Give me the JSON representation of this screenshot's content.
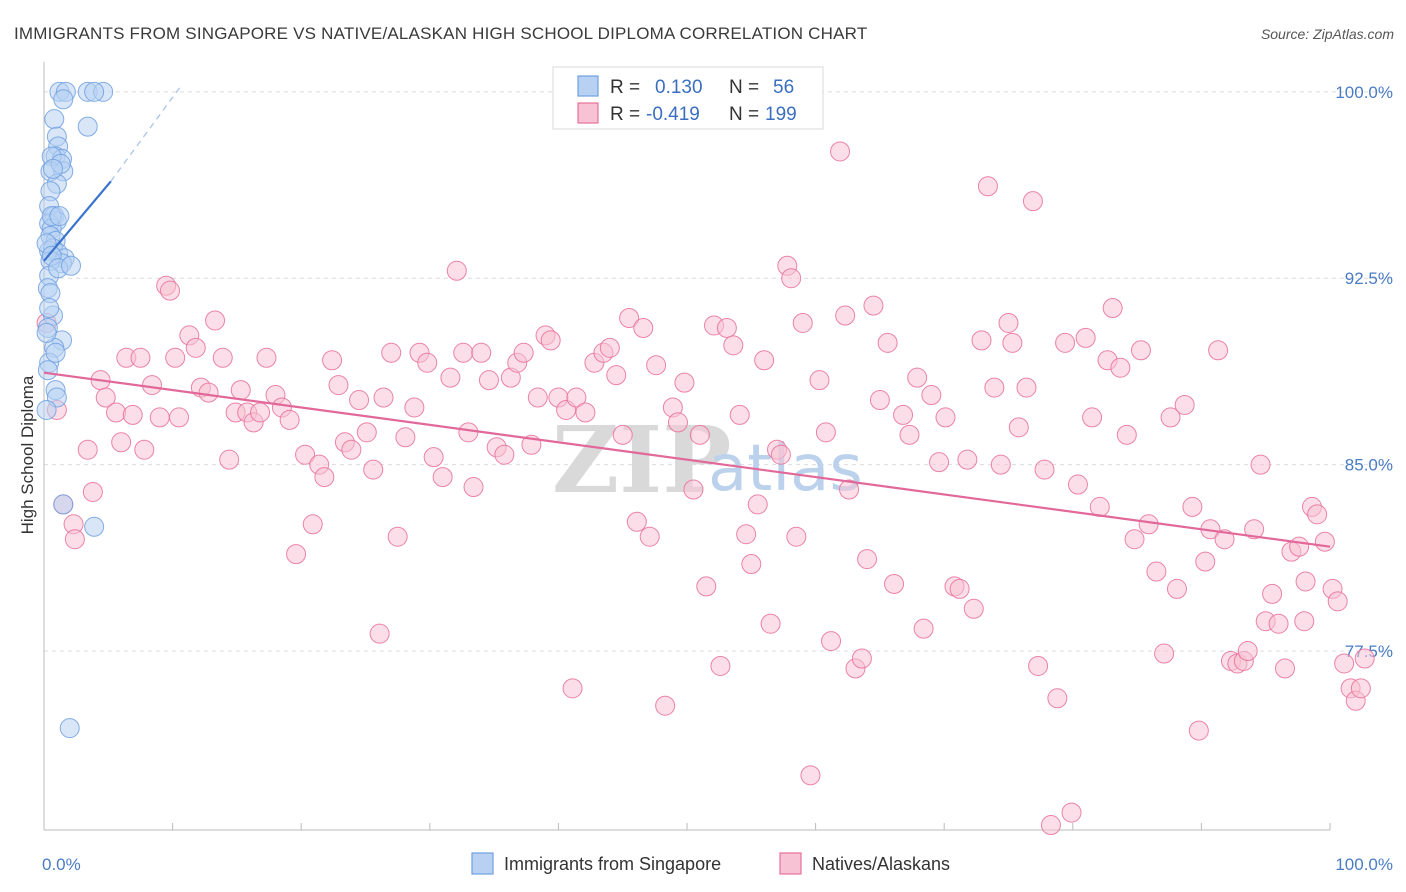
{
  "chart_data": {
    "type": "scatter",
    "title": "IMMIGRANTS FROM SINGAPORE VS NATIVE/ALASKAN HIGH SCHOOL DIPLOMA CORRELATION CHART",
    "source": "Source: ZipAtlas.com",
    "ylabel": "High School Diploma",
    "xlabel": "",
    "xlim": [
      0,
      100
    ],
    "ylim": [
      70.3,
      101.2
    ],
    "x_tick_labels": [
      "0.0%",
      "100.0%"
    ],
    "y_ticks": [
      {
        "value": 100.0,
        "label": "100.0%"
      },
      {
        "value": 92.5,
        "label": "92.5%"
      },
      {
        "value": 85.0,
        "label": "85.0%"
      },
      {
        "value": 77.5,
        "label": "77.5%"
      }
    ],
    "grid": "horizontal dashed",
    "legend_position": "top-center",
    "watermark": {
      "zip": "ZIP",
      "atlas": "atlas"
    },
    "stats": [
      {
        "r_label": "R =",
        "r": "0.130",
        "n_label": "N =",
        "n": "56"
      },
      {
        "r_label": "R =",
        "r": "-0.419",
        "n_label": "N =",
        "n": "199"
      }
    ],
    "series": [
      {
        "name": "Immigrants from Singapore",
        "color": "#6fa0e0",
        "fill": "#b8d1f3",
        "trend": {
          "x0": 0.0,
          "y0": 93.2,
          "x1": 5.2,
          "y1": 96.4,
          "dash_to_x": 10.6,
          "dash_to_y": 100.2
        },
        "points": [
          [
            1.2,
            100.0
          ],
          [
            1.7,
            100.0
          ],
          [
            3.4,
            100.0
          ],
          [
            4.6,
            100.0
          ],
          [
            1.5,
            99.7
          ],
          [
            3.9,
            100.0
          ],
          [
            0.8,
            98.9
          ],
          [
            3.4,
            98.6
          ],
          [
            1.0,
            98.2
          ],
          [
            1.1,
            97.8
          ],
          [
            0.9,
            97.4
          ],
          [
            1.4,
            97.3
          ],
          [
            0.6,
            97.4
          ],
          [
            0.5,
            96.8
          ],
          [
            1.5,
            96.8
          ],
          [
            1.0,
            96.3
          ],
          [
            0.5,
            96.0
          ],
          [
            0.4,
            95.4
          ],
          [
            0.8,
            95.0
          ],
          [
            1.0,
            94.8
          ],
          [
            0.4,
            94.7
          ],
          [
            0.6,
            94.5
          ],
          [
            0.5,
            94.2
          ],
          [
            0.9,
            94.0
          ],
          [
            0.4,
            93.6
          ],
          [
            0.7,
            93.7
          ],
          [
            1.1,
            93.5
          ],
          [
            1.6,
            93.3
          ],
          [
            1.4,
            93.1
          ],
          [
            0.5,
            93.2
          ],
          [
            0.4,
            92.6
          ],
          [
            0.3,
            92.1
          ],
          [
            0.5,
            91.9
          ],
          [
            0.7,
            91.0
          ],
          [
            0.3,
            90.5
          ],
          [
            1.4,
            90.0
          ],
          [
            0.8,
            89.7
          ],
          [
            0.4,
            89.1
          ],
          [
            0.9,
            88.0
          ],
          [
            1.0,
            87.7
          ],
          [
            0.2,
            87.2
          ],
          [
            1.5,
            83.4
          ],
          [
            3.9,
            82.5
          ],
          [
            2.0,
            74.4
          ],
          [
            0.6,
            95.0
          ],
          [
            0.2,
            93.9
          ],
          [
            1.2,
            95.0
          ],
          [
            0.9,
            89.5
          ],
          [
            0.3,
            88.8
          ],
          [
            1.3,
            97.1
          ],
          [
            0.7,
            96.9
          ],
          [
            0.2,
            90.3
          ],
          [
            0.6,
            93.4
          ],
          [
            1.1,
            92.9
          ],
          [
            2.1,
            93.0
          ],
          [
            0.4,
            91.3
          ]
        ]
      },
      {
        "name": "Natives/Alaskans",
        "color": "#e8709a",
        "fill": "#f7c3d4",
        "trend": {
          "x0": 0.0,
          "y0": 88.7,
          "x1": 100.0,
          "y1": 81.7
        },
        "points": [
          [
            0.2,
            90.7
          ],
          [
            1.0,
            87.2
          ],
          [
            1.5,
            83.4
          ],
          [
            2.3,
            82.6
          ],
          [
            2.4,
            82.0
          ],
          [
            3.4,
            85.6
          ],
          [
            3.8,
            83.9
          ],
          [
            4.4,
            88.4
          ],
          [
            4.8,
            87.7
          ],
          [
            5.6,
            87.1
          ],
          [
            6.0,
            85.9
          ],
          [
            6.4,
            89.3
          ],
          [
            6.9,
            87.0
          ],
          [
            7.5,
            89.3
          ],
          [
            7.8,
            85.6
          ],
          [
            8.4,
            88.2
          ],
          [
            9.0,
            86.9
          ],
          [
            9.5,
            92.2
          ],
          [
            9.8,
            92.0
          ],
          [
            10.2,
            89.3
          ],
          [
            10.5,
            86.9
          ],
          [
            11.3,
            90.2
          ],
          [
            11.8,
            89.7
          ],
          [
            12.2,
            88.1
          ],
          [
            12.8,
            87.9
          ],
          [
            13.3,
            90.8
          ],
          [
            13.9,
            89.3
          ],
          [
            14.4,
            85.2
          ],
          [
            14.9,
            87.1
          ],
          [
            15.3,
            88.0
          ],
          [
            15.8,
            87.1
          ],
          [
            16.3,
            86.7
          ],
          [
            16.8,
            87.1
          ],
          [
            17.3,
            89.3
          ],
          [
            18.0,
            87.8
          ],
          [
            18.5,
            87.3
          ],
          [
            19.1,
            86.8
          ],
          [
            19.6,
            81.4
          ],
          [
            20.3,
            85.4
          ],
          [
            20.9,
            82.6
          ],
          [
            21.4,
            85.0
          ],
          [
            21.8,
            84.5
          ],
          [
            22.4,
            89.2
          ],
          [
            22.9,
            88.2
          ],
          [
            23.4,
            85.9
          ],
          [
            23.9,
            85.6
          ],
          [
            24.5,
            87.6
          ],
          [
            25.1,
            86.3
          ],
          [
            25.6,
            84.8
          ],
          [
            26.1,
            78.2
          ],
          [
            26.4,
            87.7
          ],
          [
            27.0,
            89.5
          ],
          [
            27.5,
            82.1
          ],
          [
            28.1,
            86.1
          ],
          [
            28.8,
            87.3
          ],
          [
            29.2,
            89.5
          ],
          [
            29.8,
            89.1
          ],
          [
            30.3,
            85.3
          ],
          [
            31.0,
            84.5
          ],
          [
            31.6,
            88.5
          ],
          [
            32.1,
            92.8
          ],
          [
            32.6,
            89.5
          ],
          [
            33.0,
            86.3
          ],
          [
            33.4,
            84.1
          ],
          [
            34.0,
            89.5
          ],
          [
            34.6,
            88.4
          ],
          [
            35.2,
            85.7
          ],
          [
            35.8,
            85.4
          ],
          [
            36.3,
            88.5
          ],
          [
            36.8,
            89.1
          ],
          [
            37.3,
            89.5
          ],
          [
            37.9,
            85.8
          ],
          [
            38.4,
            87.7
          ],
          [
            39.0,
            90.2
          ],
          [
            39.4,
            90.0
          ],
          [
            40.0,
            87.7
          ],
          [
            40.6,
            87.2
          ],
          [
            41.1,
            76.0
          ],
          [
            41.4,
            87.7
          ],
          [
            42.1,
            87.1
          ],
          [
            42.8,
            89.1
          ],
          [
            43.5,
            89.5
          ],
          [
            44.0,
            89.7
          ],
          [
            44.5,
            88.6
          ],
          [
            45.0,
            86.2
          ],
          [
            45.5,
            90.9
          ],
          [
            46.1,
            82.7
          ],
          [
            46.6,
            90.5
          ],
          [
            47.1,
            82.1
          ],
          [
            47.6,
            89.0
          ],
          [
            48.3,
            75.3
          ],
          [
            48.9,
            87.3
          ],
          [
            49.3,
            86.7
          ],
          [
            49.8,
            88.3
          ],
          [
            50.5,
            84.0
          ],
          [
            51.0,
            86.2
          ],
          [
            51.5,
            80.1
          ],
          [
            52.1,
            90.6
          ],
          [
            52.6,
            76.9
          ],
          [
            53.1,
            90.5
          ],
          [
            53.6,
            89.8
          ],
          [
            54.1,
            87.0
          ],
          [
            54.6,
            82.2
          ],
          [
            55.0,
            81.0
          ],
          [
            55.5,
            83.4
          ],
          [
            56.0,
            89.2
          ],
          [
            56.5,
            78.6
          ],
          [
            57.0,
            85.6
          ],
          [
            57.3,
            85.4
          ],
          [
            57.8,
            93.0
          ],
          [
            58.1,
            92.5
          ],
          [
            58.5,
            82.1
          ],
          [
            59.0,
            90.7
          ],
          [
            59.6,
            72.5
          ],
          [
            60.3,
            88.4
          ],
          [
            60.8,
            86.3
          ],
          [
            61.2,
            77.9
          ],
          [
            61.9,
            97.6
          ],
          [
            62.3,
            91.0
          ],
          [
            62.6,
            84.0
          ],
          [
            63.1,
            76.8
          ],
          [
            63.6,
            77.2
          ],
          [
            64.0,
            81.2
          ],
          [
            64.5,
            91.4
          ],
          [
            65.0,
            87.6
          ],
          [
            65.6,
            89.9
          ],
          [
            66.1,
            80.2
          ],
          [
            66.8,
            87.0
          ],
          [
            67.3,
            86.2
          ],
          [
            67.9,
            88.5
          ],
          [
            68.4,
            78.4
          ],
          [
            69.0,
            87.8
          ],
          [
            69.6,
            85.1
          ],
          [
            70.1,
            86.9
          ],
          [
            70.8,
            80.1
          ],
          [
            71.2,
            80.0
          ],
          [
            71.8,
            85.2
          ],
          [
            72.3,
            79.2
          ],
          [
            72.9,
            90.0
          ],
          [
            73.4,
            96.2
          ],
          [
            73.9,
            88.1
          ],
          [
            74.4,
            85.0
          ],
          [
            75.0,
            90.7
          ],
          [
            75.3,
            89.9
          ],
          [
            75.8,
            86.5
          ],
          [
            76.4,
            88.1
          ],
          [
            76.9,
            95.6
          ],
          [
            77.3,
            76.9
          ],
          [
            77.8,
            84.8
          ],
          [
            78.3,
            70.5
          ],
          [
            78.8,
            75.6
          ],
          [
            79.4,
            89.9
          ],
          [
            79.9,
            71.0
          ],
          [
            80.4,
            84.2
          ],
          [
            81.0,
            90.1
          ],
          [
            81.5,
            86.9
          ],
          [
            82.1,
            83.3
          ],
          [
            82.7,
            89.2
          ],
          [
            83.1,
            91.3
          ],
          [
            83.7,
            88.9
          ],
          [
            84.2,
            86.2
          ],
          [
            84.8,
            82.0
          ],
          [
            85.3,
            89.6
          ],
          [
            85.9,
            82.6
          ],
          [
            86.5,
            80.7
          ],
          [
            87.1,
            77.4
          ],
          [
            87.6,
            86.9
          ],
          [
            88.1,
            80.0
          ],
          [
            88.7,
            87.4
          ],
          [
            89.3,
            83.3
          ],
          [
            89.8,
            74.3
          ],
          [
            90.3,
            81.1
          ],
          [
            90.7,
            82.4
          ],
          [
            91.3,
            89.6
          ],
          [
            91.8,
            82.0
          ],
          [
            92.3,
            77.1
          ],
          [
            92.8,
            77.0
          ],
          [
            93.3,
            77.1
          ],
          [
            93.6,
            77.5
          ],
          [
            94.1,
            82.4
          ],
          [
            94.6,
            85.0
          ],
          [
            95.0,
            78.7
          ],
          [
            95.5,
            79.8
          ],
          [
            96.0,
            78.6
          ],
          [
            96.5,
            76.8
          ],
          [
            97.0,
            81.5
          ],
          [
            97.6,
            81.7
          ],
          [
            98.1,
            80.3
          ],
          [
            98.6,
            83.3
          ],
          [
            99.0,
            83.0
          ],
          [
            99.6,
            81.9
          ],
          [
            100.2,
            80.0
          ],
          [
            100.6,
            79.5
          ],
          [
            101.1,
            77.0
          ],
          [
            101.6,
            76.0
          ],
          [
            102.0,
            75.5
          ],
          [
            102.4,
            76.0
          ],
          [
            102.7,
            77.2
          ],
          [
            98.0,
            78.7
          ]
        ]
      }
    ]
  }
}
